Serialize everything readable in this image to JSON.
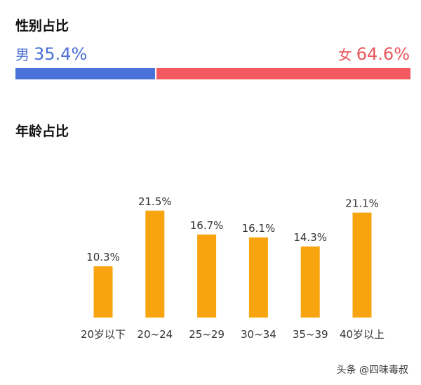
{
  "gender": {
    "title": "性别占比",
    "male": {
      "name": "男",
      "value": "35.4%",
      "pct": 35.4,
      "color": "#4a72d8"
    },
    "female": {
      "name": "女",
      "value": "64.6%",
      "pct": 64.6,
      "color": "#f35a5f"
    }
  },
  "age": {
    "title": "年龄占比"
  },
  "chart_data": {
    "type": "bar",
    "categories": [
      "20岁以下",
      "20~24",
      "25~29",
      "30~34",
      "35~39",
      "40岁以上"
    ],
    "values": [
      10.3,
      21.5,
      16.7,
      16.1,
      14.3,
      21.1
    ],
    "value_labels": [
      "10.3%",
      "21.5%",
      "16.7%",
      "16.1%",
      "14.3%",
      "21.1%"
    ],
    "bar_color": "#f7a40f",
    "ylim": [
      0,
      25
    ],
    "grid": false,
    "title": "",
    "xlabel": "",
    "ylabel": ""
  },
  "watermark": "头条 @四味毒叔"
}
